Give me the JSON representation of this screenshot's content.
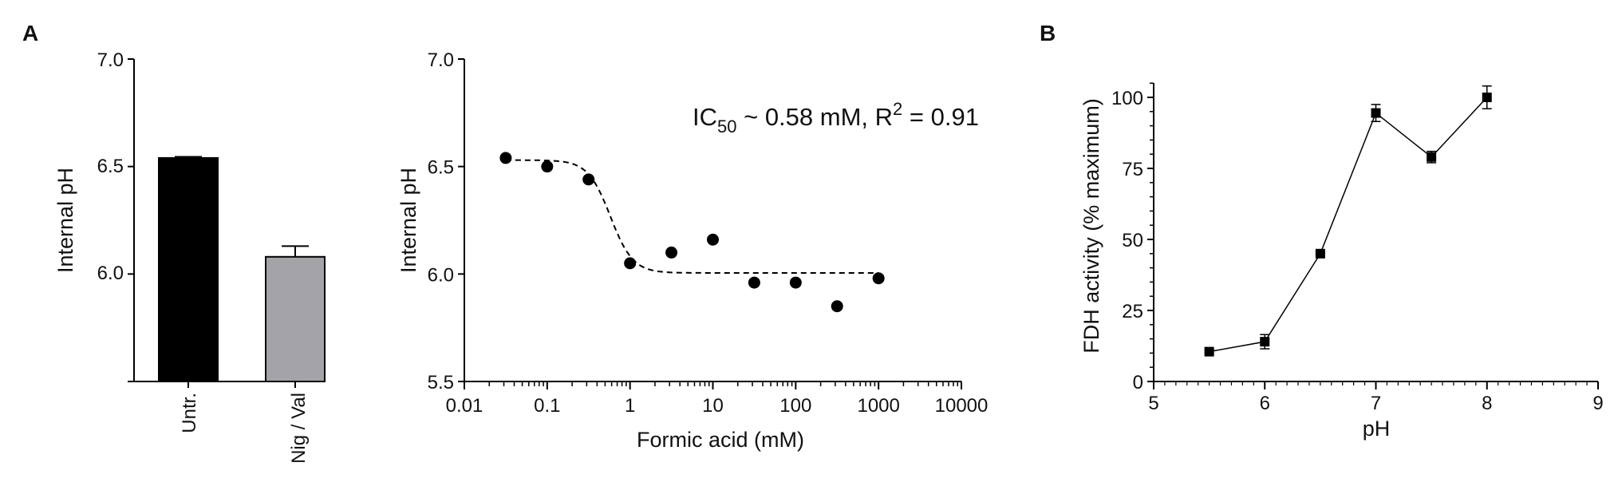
{
  "panel_labels": [
    "A",
    "B"
  ],
  "chart_data": [
    {
      "type": "bar",
      "categories": [
        "Untr.",
        "Nig / Val"
      ],
      "values": [
        6.54,
        6.08
      ],
      "errors": [
        0.005,
        0.05
      ],
      "colors": [
        "#000000",
        "#a3a3a8"
      ],
      "ylabel": "Internal pH",
      "xlabel": "",
      "ylim": [
        5.5,
        7.0
      ],
      "yticks": [
        "6.0",
        "6.5",
        "7.0"
      ]
    },
    {
      "type": "scatter",
      "xscale": "log",
      "x": [
        0.0316,
        0.1,
        0.316,
        1,
        3.16,
        10,
        31.6,
        100,
        316,
        1000
      ],
      "y": [
        6.54,
        6.5,
        6.44,
        6.05,
        6.1,
        6.16,
        5.96,
        5.96,
        5.85,
        5.98
      ],
      "fit": {
        "top": 6.53,
        "bottom": 6.005,
        "ic50": 0.58,
        "hill": 3.2,
        "style": "dashed"
      },
      "annotation": {
        "pre": "IC",
        "sub": "50",
        "mid": " ~ 0.58 mM, R",
        "sup": "2",
        "post": " = 0.91"
      },
      "xlabel": "Formic acid (mM)",
      "ylabel": "Internal pH",
      "xlim": [
        0.01,
        10000
      ],
      "ylim": [
        5.5,
        7.0
      ],
      "xticks": [
        "0.01",
        "0.1",
        "1",
        "10",
        "100",
        "1000",
        "10000"
      ],
      "yticks": [
        "5.5",
        "6.0",
        "6.5",
        "7.0"
      ]
    },
    {
      "type": "line",
      "x": [
        5.5,
        6.0,
        6.5,
        7.0,
        7.5,
        8.0
      ],
      "y": [
        10.5,
        14,
        45,
        94.5,
        79,
        100
      ],
      "errors": [
        0.5,
        2.5,
        0.5,
        3,
        2,
        4
      ],
      "marker": "square",
      "xlabel": "pH",
      "ylabel": "FDH activity (% maximum)",
      "xlim": [
        5,
        9
      ],
      "ylim": [
        0,
        100
      ],
      "xticks": [
        "5",
        "6",
        "7",
        "8",
        "9"
      ],
      "yticks": [
        "0",
        "25",
        "50",
        "75",
        "100"
      ]
    }
  ]
}
